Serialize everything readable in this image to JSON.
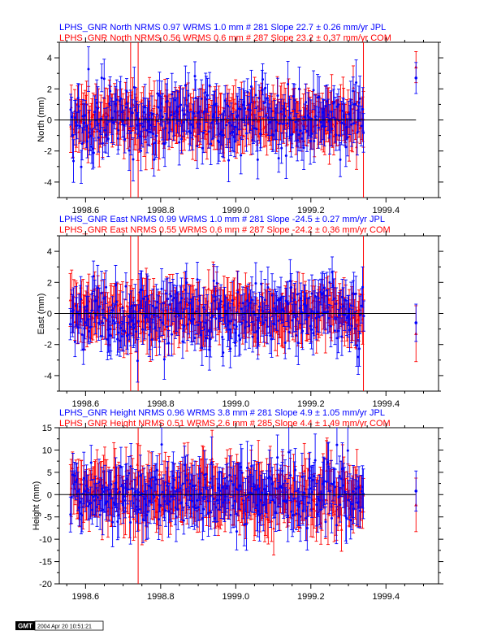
{
  "colors": {
    "jpl": "#0000ff",
    "com": "#ff0000",
    "axis": "#000000"
  },
  "panels": [
    {
      "label_jpl": "LPHS_GNR North NRMS 0.97 WRMS  1.0 mm # 281 Slope   22.7 ±  0.26 mm/yr JPL",
      "label_com": "LPHS_GNR North NRMS 0.56 WRMS  0.6 mm # 287 Slope   23.2 ±  0.37 mm/yr COM",
      "ylabel": "North (mm)"
    },
    {
      "label_jpl": "LPHS_GNR East NRMS 0.99 WRMS  1.0 mm # 281 Slope  -24.5 ±  0.27 mm/yr JPL",
      "label_com": "LPHS_GNR East NRMS 0.55 WRMS  0.6 mm # 287 Slope  -24.2 ±  0.36 mm/yr COM",
      "ylabel": "East (mm)"
    },
    {
      "label_jpl": "LPHS_GNR Height NRMS 0.96 WRMS  3.8 mm # 281 Slope    4.9 ±  1.05 mm/yr JPL",
      "label_com": "LPHS_GNR Height NRMS 0.51 WRMS  2.6 mm # 285 Slope    4.4 ±  1.49 mm/yr COM",
      "ylabel": "Height (mm)"
    }
  ],
  "chart_data": [
    {
      "type": "scatter",
      "title": "LPHS_GNR North",
      "ylabel": "North (mm)",
      "xlim": [
        1998.53,
        1999.54
      ],
      "ylim": [
        -5,
        5
      ],
      "xticks": [
        1998.6,
        1998.8,
        1999.0,
        1999.2,
        1999.4
      ],
      "xtick_labels": [
        "1998.6",
        "1998.8",
        "1999.0",
        "1999.2",
        "1999.4"
      ],
      "yticks": [
        -4,
        -2,
        0,
        2,
        4
      ],
      "ytick_labels": [
        "-4",
        "-2",
        "0",
        "2",
        "4"
      ],
      "zero_line": [
        1998.53,
        1999.48
      ],
      "vlines": [
        1998.72,
        1998.74,
        1999.34
      ],
      "x_range": [
        1998.56,
        1999.34
      ],
      "series": [
        {
          "name": "JPL",
          "count": 281,
          "scatter": 1.0,
          "err": [
            0.8,
            1.5
          ],
          "outlier": {
            "x": 1999.48,
            "y": 2.7,
            "err": 1.0
          }
        },
        {
          "name": "COM",
          "count": 287,
          "scatter": 0.6,
          "err": [
            1.0,
            1.8
          ],
          "outlier": {
            "x": 1999.48,
            "y": 3.4,
            "err": 1.0
          }
        }
      ]
    },
    {
      "type": "scatter",
      "title": "LPHS_GNR East",
      "ylabel": "East (mm)",
      "xlim": [
        1998.53,
        1999.54
      ],
      "ylim": [
        -5,
        5
      ],
      "xticks": [
        1998.6,
        1998.8,
        1999.0,
        1999.2,
        1999.4
      ],
      "xtick_labels": [
        "1998.6",
        "1998.8",
        "1999.0",
        "1999.2",
        "1999.4"
      ],
      "yticks": [
        -4,
        -2,
        0,
        2,
        4
      ],
      "ytick_labels": [
        "-4",
        "-2",
        "0",
        "2",
        "4"
      ],
      "zero_line": [
        1998.53,
        1999.48
      ],
      "vlines": [
        1998.72,
        1998.74,
        1999.34
      ],
      "x_range": [
        1998.56,
        1999.34
      ],
      "series": [
        {
          "name": "JPL",
          "count": 281,
          "scatter": 1.0,
          "err": [
            0.8,
            1.5
          ],
          "outlier": {
            "x": 1999.48,
            "y": -0.6,
            "err": 1.2
          }
        },
        {
          "name": "COM",
          "count": 287,
          "scatter": 0.6,
          "err": [
            1.0,
            1.8
          ],
          "outlier": {
            "x": 1999.48,
            "y": -1.3,
            "err": 1.8
          }
        }
      ]
    },
    {
      "type": "scatter",
      "title": "LPHS_GNR Height",
      "ylabel": "Height (mm)",
      "xlim": [
        1998.53,
        1999.54
      ],
      "ylim": [
        -20,
        15
      ],
      "xticks": [
        1998.6,
        1998.8,
        1999.0,
        1999.2,
        1999.4
      ],
      "xtick_labels": [
        "1998.6",
        "1998.8",
        "1999.0",
        "1999.2",
        "1999.4"
      ],
      "yticks": [
        -20,
        -15,
        -10,
        -5,
        0,
        5,
        10,
        15
      ],
      "ytick_labels": [
        "-20",
        "-15",
        "-10",
        "-5",
        "0",
        "5",
        "10",
        "15"
      ],
      "zero_line": [
        1998.53,
        1999.48
      ],
      "vlines": [
        1998.74
      ],
      "x_range": [
        1998.56,
        1999.34
      ],
      "series": [
        {
          "name": "JPL",
          "count": 281,
          "scatter": 3.8,
          "err": [
            3.0,
            6.0
          ],
          "outlier": {
            "x": 1999.48,
            "y": 0.8,
            "err": 4.5
          }
        },
        {
          "name": "COM",
          "count": 285,
          "scatter": 2.6,
          "err": [
            3.5,
            7.0
          ],
          "outlier": {
            "x": 1999.48,
            "y": -2.3,
            "err": 6.0
          }
        }
      ]
    }
  ],
  "footer": {
    "logo": "GMT",
    "timestamp": "2004 Apr 20 10:51:21"
  }
}
